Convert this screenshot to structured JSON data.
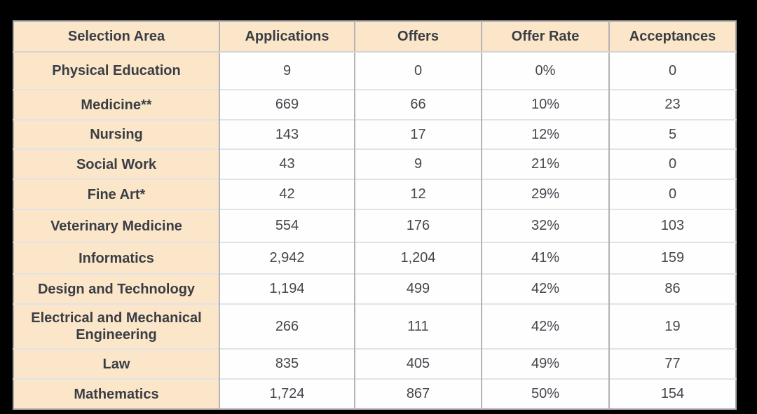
{
  "chart_data": {
    "type": "table",
    "columns": [
      "Selection Area",
      "Applications",
      "Offers",
      "Offer Rate",
      "Acceptances"
    ],
    "rows": [
      [
        "Physical Education",
        "9",
        "0",
        "0%",
        "0"
      ],
      [
        "Medicine**",
        "669",
        "66",
        "10%",
        "23"
      ],
      [
        "Nursing",
        "143",
        "17",
        "12%",
        "5"
      ],
      [
        "Social Work",
        "43",
        "9",
        "21%",
        "0"
      ],
      [
        "Fine Art*",
        "42",
        "12",
        "29%",
        "0"
      ],
      [
        "Veterinary Medicine",
        "554",
        "176",
        "32%",
        "103"
      ],
      [
        "Informatics",
        "2,942",
        "1,204",
        "41%",
        "159"
      ],
      [
        "Design and Technology",
        "1,194",
        "499",
        "42%",
        "86"
      ],
      [
        "Electrical and Mechanical Engineering",
        "266",
        "111",
        "42%",
        "19"
      ],
      [
        "Law",
        "835",
        "405",
        "49%",
        "77"
      ],
      [
        "Mathematics",
        "1,724",
        "867",
        "50%",
        "154"
      ]
    ]
  },
  "colors": {
    "canvas_bg": "#000000",
    "header_bg": "#fbe6c9",
    "row_label_bg": "#fbe6c9",
    "cell_bg": "#fefefe",
    "text_strong": "#3a3e44",
    "text_value": "#44474d",
    "border_outer": "#a7a7ab",
    "border_vertical": "#b6b2b4",
    "border_horizontal": "#e3e2e5",
    "border_header_bottom": "#d6d3d2"
  }
}
